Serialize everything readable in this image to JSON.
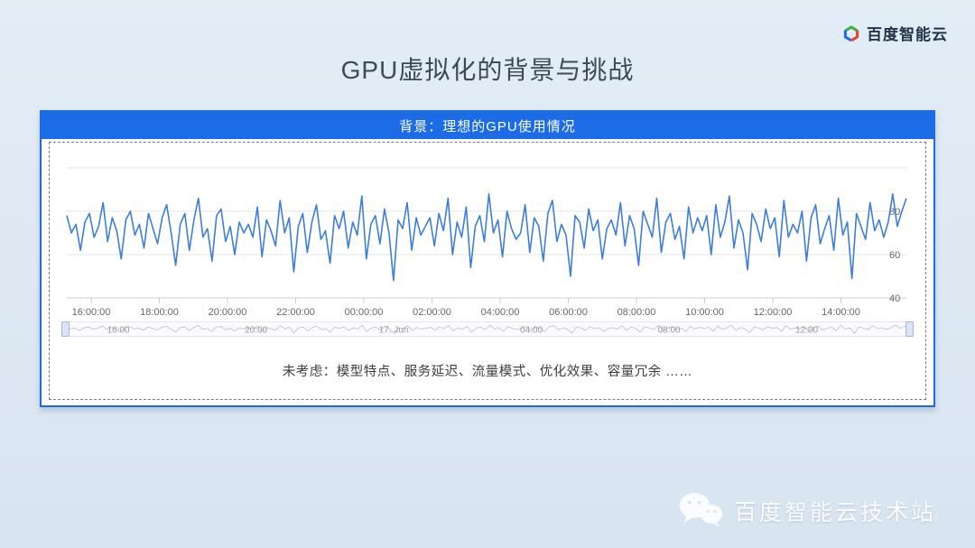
{
  "logo": {
    "text": "百度智能云"
  },
  "title": "GPU虚拟化的背景与挑战",
  "panel": {
    "header": "背景：理想的GPU使用情况",
    "header_bg": "#1c6ce7",
    "caption": "未考虑：模型特点、服务延迟、流量模式、优化效果、容量冗余 ……"
  },
  "footer": {
    "text": "百度智能云技术站",
    "icon": "wechat-icon"
  },
  "chart_data": {
    "type": "line",
    "title": "背景：理想的GPU使用情况",
    "ylabel": "",
    "xlabel": "",
    "ylim": [
      40,
      100
    ],
    "y_tick_labels": [
      "80",
      "60",
      "40"
    ],
    "y_tick_values": [
      80,
      60,
      40
    ],
    "grid": "horizontal-only",
    "legend": "none",
    "line_color": "#3d7ed8",
    "x_tick_labels": [
      "16:00:00",
      "18:00:00",
      "20:00:00",
      "22:00:00",
      "00:00:00",
      "02:00:00",
      "04:00:00",
      "06:00:00",
      "08:00:00",
      "10:00:00",
      "12:00:00",
      "14:00:00"
    ],
    "values": [
      78,
      70,
      74,
      62,
      75,
      79,
      68,
      73,
      84,
      66,
      77,
      71,
      58,
      76,
      80,
      69,
      74,
      63,
      79,
      72,
      65,
      77,
      83,
      70,
      55,
      74,
      79,
      62,
      76,
      86,
      68,
      72,
      57,
      78,
      81,
      66,
      73,
      60,
      75,
      70,
      74,
      68,
      82,
      59,
      76,
      71,
      64,
      85,
      70,
      77,
      52,
      73,
      79,
      61,
      75,
      83,
      67,
      71,
      56,
      78,
      72,
      80,
      63,
      75,
      69,
      87,
      58,
      74,
      78,
      65,
      81,
      70,
      48,
      76,
      72,
      84,
      62,
      77,
      69,
      73,
      77,
      64,
      79,
      71,
      86,
      60,
      75,
      68,
      82,
      54,
      73,
      78,
      66,
      88,
      70,
      76,
      59,
      80,
      72,
      67,
      70,
      83,
      61,
      77,
      73,
      57,
      79,
      85,
      66,
      74,
      69,
      50,
      78,
      75,
      63,
      81,
      71,
      76,
      58,
      72,
      76,
      69,
      84,
      64,
      78,
      72,
      55,
      80,
      74,
      68,
      86,
      61,
      75,
      79,
      67,
      73,
      58,
      82,
      70,
      77,
      71,
      78,
      60,
      83,
      68,
      75,
      87,
      63,
      76,
      70,
      53,
      79,
      74,
      66,
      81,
      72,
      77,
      59,
      85,
      68,
      74,
      70,
      80,
      57,
      77,
      83,
      65,
      72,
      78,
      62,
      86,
      69,
      75,
      49,
      79,
      73,
      67,
      84,
      71,
      76,
      68,
      75,
      88,
      73,
      80,
      86
    ],
    "navigator": {
      "labels": [
        "16:00",
        "20:00",
        "17. Jun",
        "04:00",
        "08:00",
        "12:00"
      ]
    }
  }
}
